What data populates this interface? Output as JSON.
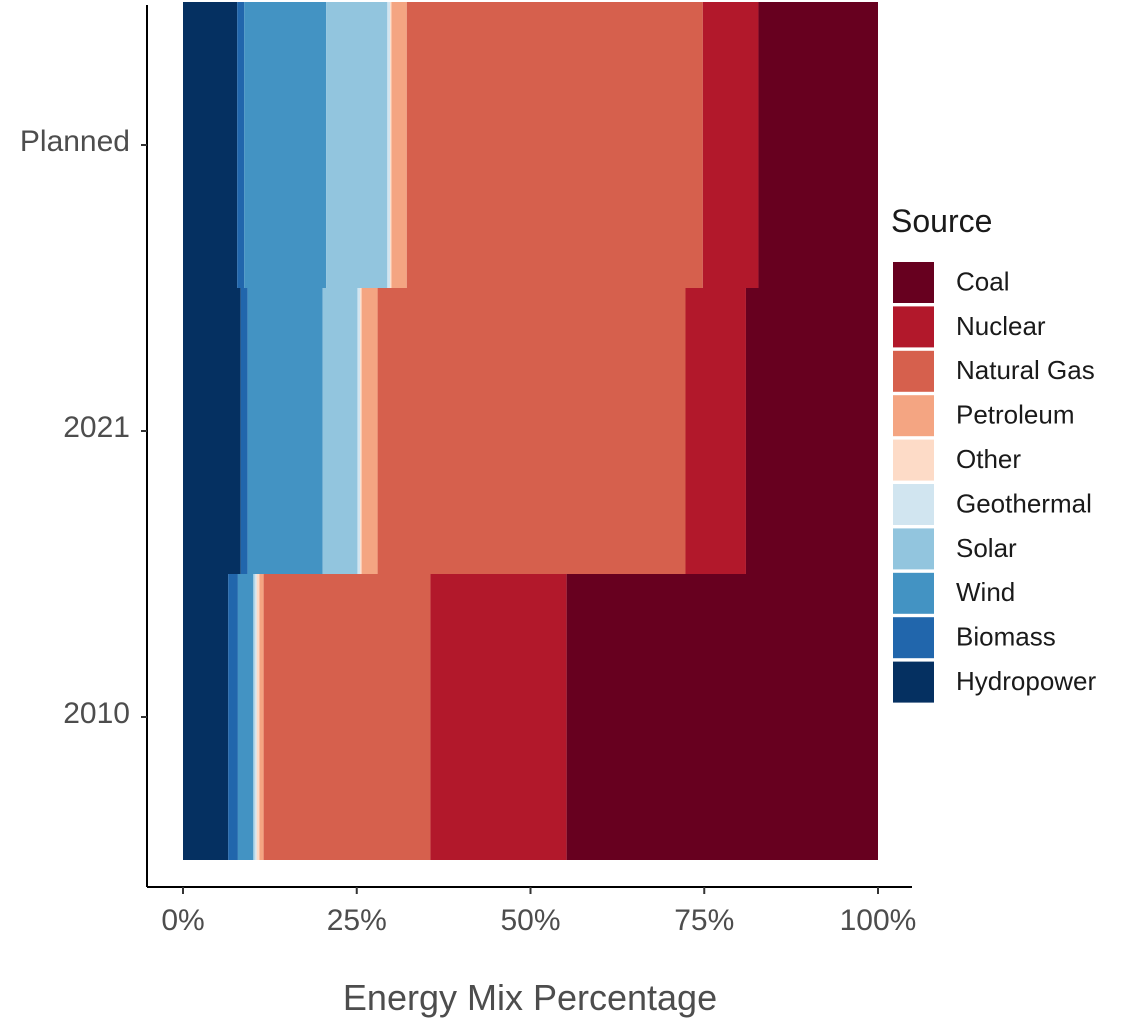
{
  "chart_data": {
    "type": "bar",
    "orientation": "horizontal",
    "stacked": true,
    "categories": [
      "2010",
      "2021",
      "Planned"
    ],
    "xlabel": "Energy Mix Percentage",
    "ylabel": "",
    "xlim": [
      0,
      100
    ],
    "x_ticks": [
      0,
      25,
      50,
      75,
      100
    ],
    "x_tick_labels": [
      "0%",
      "25%",
      "50%",
      "75%",
      "100%"
    ],
    "grid": false,
    "legend": {
      "title": "Source",
      "placement": "right"
    },
    "series": [
      {
        "name": "Hydropower",
        "color": "#053061",
        "values": [
          6.5,
          8.3,
          7.8
        ]
      },
      {
        "name": "Biomass",
        "color": "#2166AC",
        "values": [
          1.4,
          1.0,
          1.0
        ]
      },
      {
        "name": "Wind",
        "color": "#4393C3",
        "values": [
          2.2,
          10.8,
          11.8
        ]
      },
      {
        "name": "Solar",
        "color": "#92C5DE",
        "values": [
          0.2,
          5.0,
          8.8
        ]
      },
      {
        "name": "Geothermal",
        "color": "#D1E5F0",
        "values": [
          0.3,
          0.4,
          0.4
        ]
      },
      {
        "name": "Other",
        "color": "#FDDBC7",
        "values": [
          0.4,
          0.2,
          0.2
        ]
      },
      {
        "name": "Petroleum",
        "color": "#F4A582",
        "values": [
          0.6,
          2.3,
          2.2
        ]
      },
      {
        "name": "Natural Gas",
        "color": "#D6604D",
        "values": [
          24.0,
          44.3,
          42.6
        ]
      },
      {
        "name": "Nuclear",
        "color": "#B2182B",
        "values": [
          19.6,
          8.7,
          8.0
        ]
      },
      {
        "name": "Coal",
        "color": "#67001F",
        "values": [
          44.8,
          19.0,
          17.2
        ]
      }
    ]
  }
}
